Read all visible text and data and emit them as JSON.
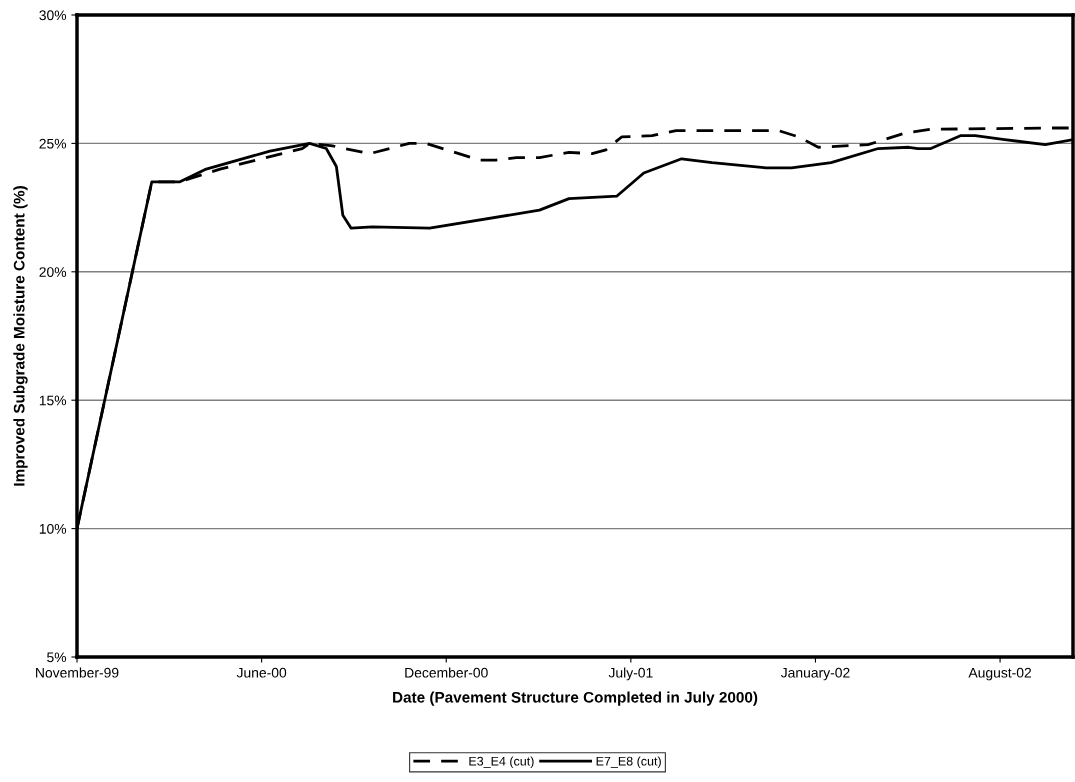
{
  "chart_data": {
    "type": "line",
    "xlabel": "Date (Pavement Structure Completed in July 2000)",
    "ylabel": "Improved Subgrade Moisture Content (%)",
    "xlim": [
      "1999-11-20",
      "2002-11-03"
    ],
    "xticks": [
      {
        "value": "1999-11-20",
        "label": "November-99"
      },
      {
        "value": "2000-06-07",
        "label": "June-00"
      },
      {
        "value": "2000-12-24",
        "label": "December-00"
      },
      {
        "value": "2001-07-12",
        "label": "July-01"
      },
      {
        "value": "2002-01-28",
        "label": "January-02"
      },
      {
        "value": "2002-08-16",
        "label": "August-02"
      }
    ],
    "ylim": [
      5,
      30
    ],
    "yticks": [
      {
        "value": 5,
        "label": "5%"
      },
      {
        "value": 10,
        "label": "10%"
      },
      {
        "value": 15,
        "label": "15%"
      },
      {
        "value": 20,
        "label": "20%"
      },
      {
        "value": 25,
        "label": "25%"
      },
      {
        "value": 30,
        "label": "30%"
      }
    ],
    "grid": "y",
    "legend": "bottom",
    "marker": "none",
    "series": [
      {
        "name": "E3_E4 (cut)",
        "color": "#000000",
        "line_style": "dashed",
        "x": [
          "1999-11-20",
          "2000-02-09",
          "2000-03-10",
          "2000-04-23",
          "2000-07-21",
          "2000-07-29",
          "2000-08-23",
          "2000-10-02",
          "2000-11-14",
          "2000-12-02",
          "2001-01-29",
          "2001-02-16",
          "2001-03-10",
          "2001-04-04",
          "2001-05-06",
          "2001-05-31",
          "2001-06-15",
          "2001-07-02",
          "2001-08-04",
          "2001-08-30",
          "2001-11-06",
          "2001-12-19",
          "2002-01-10",
          "2002-01-31",
          "2002-03-26",
          "2002-05-05",
          "2002-06-02",
          "2002-10-10",
          "2002-11-03"
        ],
        "values": [
          10.0,
          23.5,
          23.5,
          24.0,
          24.8,
          25.0,
          24.9,
          24.6,
          25.0,
          25.0,
          24.35,
          24.35,
          24.45,
          24.45,
          24.65,
          24.6,
          24.75,
          25.25,
          25.3,
          25.5,
          25.5,
          25.5,
          25.25,
          24.85,
          24.95,
          25.4,
          25.55,
          25.6,
          25.6
        ]
      },
      {
        "name": "E7_E8 (cut)",
        "color": "#000000",
        "line_style": "solid",
        "x": [
          "1999-11-20",
          "2000-02-09",
          "2000-03-10",
          "2000-04-08",
          "2000-06-16",
          "2000-07-29",
          "2000-08-16",
          "2000-08-27",
          "2000-09-03",
          "2000-09-12",
          "2000-10-05",
          "2000-12-06",
          "2001-04-04",
          "2001-05-06",
          "2001-06-27",
          "2001-07-26",
          "2001-09-05",
          "2001-10-08",
          "2001-12-05",
          "2002-01-02",
          "2002-02-14",
          "2002-04-06",
          "2002-05-09",
          "2002-05-19",
          "2002-06-02",
          "2002-07-04",
          "2002-07-20",
          "2002-08-21",
          "2002-10-04",
          "2002-11-03"
        ],
        "values": [
          10.0,
          23.5,
          23.5,
          24.0,
          24.7,
          25.0,
          24.8,
          24.1,
          22.2,
          21.7,
          21.75,
          21.7,
          22.4,
          22.85,
          22.95,
          23.85,
          24.4,
          24.25,
          24.05,
          24.05,
          24.25,
          24.8,
          24.85,
          24.8,
          24.8,
          25.3,
          25.3,
          25.15,
          24.95,
          25.15
        ]
      }
    ]
  }
}
